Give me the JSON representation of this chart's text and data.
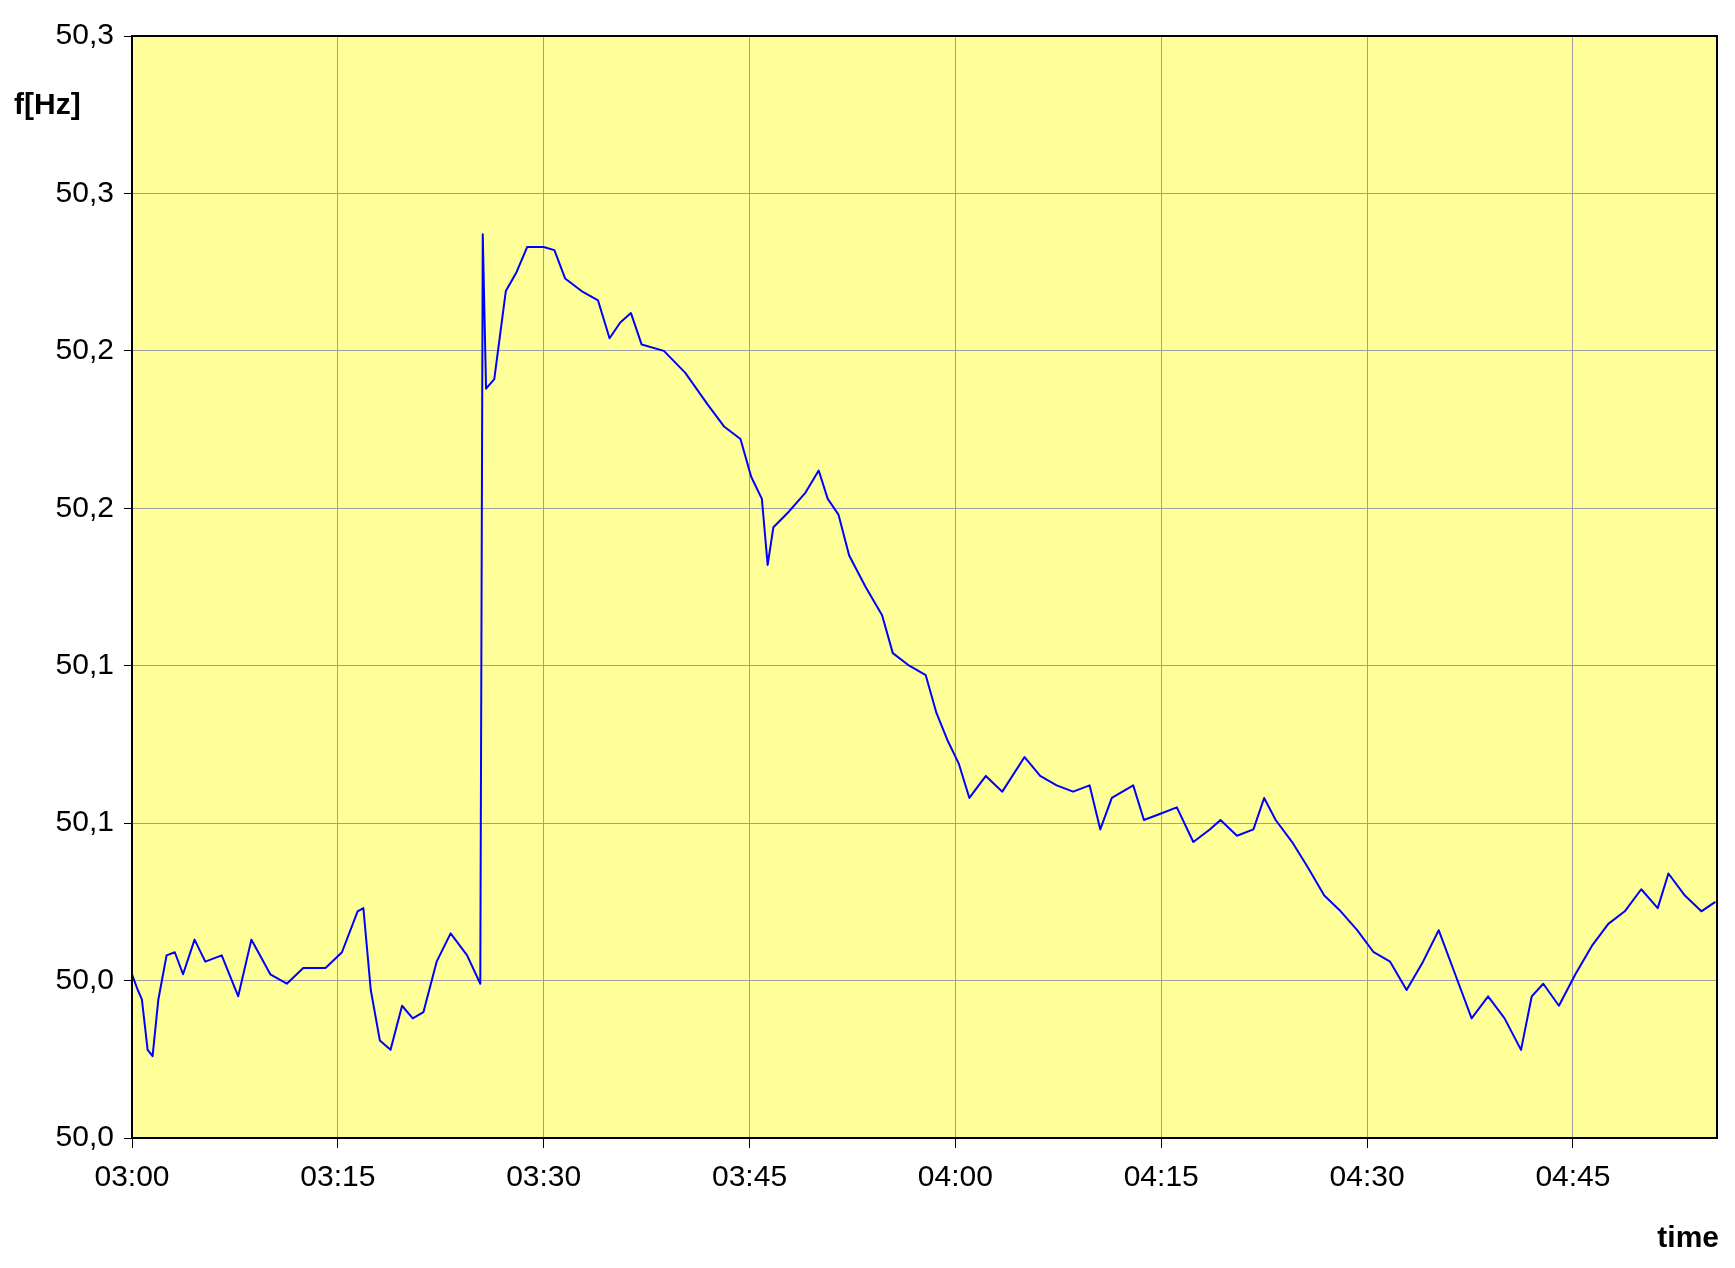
{
  "chart_data": {
    "type": "line",
    "xlabel": "time",
    "ylabel": "f[Hz]",
    "grid": true,
    "legend": false,
    "marker": "none",
    "line_style": "solid",
    "xlim": [
      3,
      4.925
    ],
    "xticks": [
      {
        "value": 3,
        "label": "03:00"
      },
      {
        "value": 3.25,
        "label": "03:15"
      },
      {
        "value": 3.5,
        "label": "03:30"
      },
      {
        "value": 3.75,
        "label": "03:45"
      },
      {
        "value": 4,
        "label": "04:00"
      },
      {
        "value": 4.25,
        "label": "04:15"
      },
      {
        "value": 4.5,
        "label": "04:30"
      },
      {
        "value": 4.75,
        "label": "04:45"
      }
    ],
    "ylim": [
      50,
      50.35
    ],
    "yticks": [
      {
        "value": 50,
        "label": "50,0"
      },
      {
        "value": 50.05,
        "label": "50,0"
      },
      {
        "value": 50.1,
        "label": "50,1"
      },
      {
        "value": 50.15,
        "label": "50,1"
      },
      {
        "value": 50.2,
        "label": "50,2"
      },
      {
        "value": 50.25,
        "label": "50,2"
      },
      {
        "value": 50.3,
        "label": "50,3"
      },
      {
        "value": 50.35,
        "label": "50,3"
      }
    ],
    "series": [
      {
        "color": "#0000ff",
        "x": [
          3.0,
          3.007,
          3.012,
          3.019,
          3.025,
          3.032,
          3.042,
          3.052,
          3.062,
          3.076,
          3.089,
          3.109,
          3.129,
          3.145,
          3.168,
          3.188,
          3.208,
          3.235,
          3.255,
          3.274,
          3.281,
          3.29,
          3.301,
          3.314,
          3.328,
          3.341,
          3.354,
          3.37,
          3.387,
          3.407,
          3.423,
          3.426,
          3.43,
          3.44,
          3.454,
          3.467,
          3.48,
          3.5,
          3.513,
          3.526,
          3.546,
          3.566,
          3.58,
          3.593,
          3.606,
          3.619,
          3.646,
          3.672,
          3.699,
          3.719,
          3.739,
          3.752,
          3.765,
          3.772,
          3.779,
          3.798,
          3.818,
          3.834,
          3.845,
          3.858,
          3.871,
          3.891,
          3.911,
          3.924,
          3.944,
          3.964,
          3.977,
          3.991,
          4.004,
          4.017,
          4.037,
          4.057,
          4.084,
          4.103,
          4.123,
          4.143,
          4.163,
          4.176,
          4.19,
          4.216,
          4.229,
          4.249,
          4.269,
          4.289,
          4.309,
          4.322,
          4.342,
          4.362,
          4.375,
          4.389,
          4.409,
          4.428,
          4.448,
          4.468,
          4.488,
          4.508,
          4.528,
          4.548,
          4.568,
          4.587,
          4.607,
          4.627,
          4.647,
          4.667,
          4.687,
          4.7,
          4.714,
          4.733,
          4.753,
          4.773,
          4.793,
          4.813,
          4.833,
          4.853,
          4.866,
          4.886,
          4.906,
          4.923
        ],
        "values": [
          50.052,
          50.047,
          50.044,
          50.028,
          50.026,
          50.044,
          50.058,
          50.059,
          50.052,
          50.063,
          50.056,
          50.058,
          50.045,
          50.063,
          50.052,
          50.049,
          50.054,
          50.054,
          50.059,
          50.072,
          50.073,
          50.047,
          50.031,
          50.028,
          50.042,
          50.038,
          50.04,
          50.056,
          50.065,
          50.058,
          50.049,
          50.287,
          50.238,
          50.241,
          50.269,
          50.275,
          50.283,
          50.283,
          50.282,
          50.273,
          50.269,
          50.266,
          50.254,
          50.259,
          50.262,
          50.252,
          50.25,
          50.243,
          50.233,
          50.226,
          50.222,
          50.21,
          50.203,
          50.182,
          50.194,
          50.199,
          50.205,
          50.212,
          50.203,
          50.198,
          50.185,
          50.175,
          50.166,
          50.154,
          50.15,
          50.147,
          50.135,
          50.126,
          50.119,
          50.108,
          50.115,
          50.11,
          50.121,
          50.115,
          50.112,
          50.11,
          50.112,
          50.098,
          50.108,
          50.112,
          50.101,
          50.103,
          50.105,
          50.094,
          50.098,
          50.101,
          50.096,
          50.098,
          50.108,
          50.101,
          50.094,
          50.086,
          50.077,
          50.072,
          50.066,
          50.059,
          50.056,
          50.047,
          50.056,
          50.066,
          50.052,
          50.038,
          50.045,
          50.038,
          50.028,
          50.045,
          50.049,
          50.042,
          50.052,
          50.061,
          50.068,
          50.072,
          50.079,
          50.073,
          50.084,
          50.077,
          50.072,
          50.075
        ]
      }
    ]
  }
}
